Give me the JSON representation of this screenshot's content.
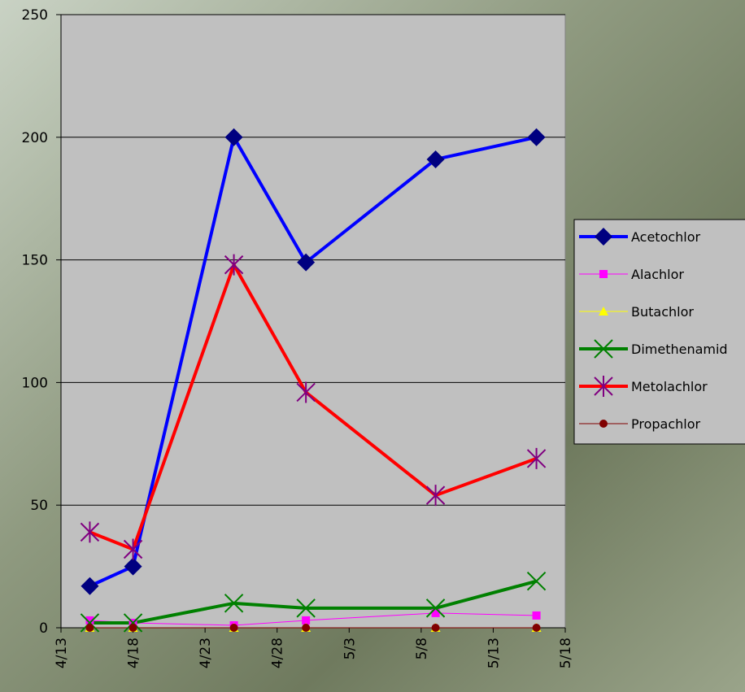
{
  "chart_data": {
    "type": "line",
    "x": [
      "4/15",
      "4/18",
      "4/25",
      "4/30",
      "5/9",
      "5/16"
    ],
    "xlim": [
      "4/13",
      "5/18"
    ],
    "xticks": [
      "4/13",
      "4/18",
      "4/23",
      "4/28",
      "5/3",
      "5/8",
      "5/13",
      "5/18"
    ],
    "ylim": [
      0,
      250
    ],
    "yticks": [
      0,
      50,
      100,
      150,
      200,
      250
    ],
    "grid": true,
    "legend": "right",
    "series": [
      {
        "name": "Acetochlor",
        "color": "#0000ff",
        "marker": "diamond",
        "marker_color": "#000080",
        "line_width": 4,
        "values": [
          17,
          25,
          200,
          149,
          191,
          200
        ]
      },
      {
        "name": "Alachlor",
        "color": "#ff00ff",
        "marker": "square",
        "marker_color": "#ff00ff",
        "line_width": 1,
        "values": [
          3,
          2,
          1,
          3,
          6,
          5
        ]
      },
      {
        "name": "Butachlor",
        "color": "#ffff00",
        "marker": "triangle",
        "marker_color": "#ffff00",
        "line_width": 1,
        "values": [
          0,
          0,
          0,
          0,
          0,
          0
        ]
      },
      {
        "name": "Dimethenamid",
        "color": "#008000",
        "marker": "x",
        "marker_color": "#008000",
        "line_width": 4,
        "values": [
          2,
          2,
          10,
          8,
          8,
          19
        ]
      },
      {
        "name": "Metolachlor",
        "color": "#ff0000",
        "marker": "star",
        "marker_color": "#800080",
        "line_width": 4,
        "values": [
          39,
          32,
          148,
          96,
          54,
          69
        ]
      },
      {
        "name": "Propachlor",
        "color": "#800000",
        "marker": "circle",
        "marker_color": "#800000",
        "line_width": 1,
        "values": [
          0,
          0,
          0,
          0,
          0,
          0
        ]
      }
    ]
  }
}
